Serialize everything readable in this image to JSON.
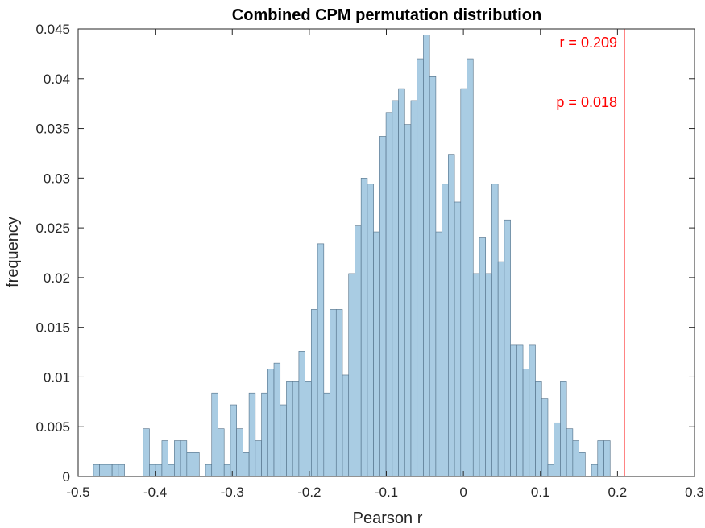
{
  "chart_data": {
    "type": "bar",
    "title": "Combined CPM permutation distribution",
    "xlabel": "Pearson r",
    "ylabel": "frequency",
    "xlim": [
      -0.5,
      0.3
    ],
    "ylim": [
      0,
      0.045
    ],
    "xticks": [
      -0.5,
      -0.4,
      -0.3,
      -0.2,
      -0.1,
      0,
      0.1,
      0.2,
      0.3
    ],
    "xtick_labels": [
      "-0.5",
      "-0.4",
      "-0.3",
      "-0.2",
      "-0.1",
      "0",
      "0.1",
      "0.2",
      "0.3"
    ],
    "yticks": [
      0,
      0.005,
      0.01,
      0.015,
      0.02,
      0.025,
      0.03,
      0.035,
      0.04,
      0.045
    ],
    "ytick_labels": [
      "0",
      "0.005",
      "0.01",
      "0.015",
      "0.02",
      "0.025",
      "0.03",
      "0.035",
      "0.04",
      "0.045"
    ],
    "bin_start": -0.4802,
    "bin_width": 0.00808,
    "values": [
      0.0012,
      0.0012,
      0.0012,
      0.0012,
      0.0012,
      0,
      0,
      0,
      0.0048,
      0.0012,
      0.0012,
      0.0036,
      0.0012,
      0.0036,
      0.0036,
      0.0024,
      0.0024,
      0,
      0.0012,
      0.0084,
      0.0048,
      0.0012,
      0.0072,
      0.0048,
      0.0024,
      0.0084,
      0.0036,
      0.0084,
      0.0108,
      0.0114,
      0.0072,
      0.0096,
      0.0096,
      0.0126,
      0.0096,
      0.0168,
      0.0234,
      0.0084,
      0.0168,
      0.0168,
      0.0102,
      0.0204,
      0.0252,
      0.03,
      0.0294,
      0.0246,
      0.0342,
      0.0366,
      0.0378,
      0.039,
      0.0354,
      0.0378,
      0.042,
      0.0444,
      0.0402,
      0.0246,
      0.0294,
      0.0324,
      0.0276,
      0.039,
      0.042,
      0.0204,
      0.024,
      0.0204,
      0.0294,
      0.0216,
      0.0258,
      0.0132,
      0.0132,
      0.0108,
      0.0132,
      0.0096,
      0.0078,
      0.0012,
      0.0054,
      0.0096,
      0.0048,
      0.0036,
      0.0024,
      0,
      0.0012,
      0.0036,
      0.0036
    ],
    "bar_color": "#a9cce3",
    "bar_edge_color": "#4f6d85",
    "vline": {
      "x": 0.209,
      "color": "#ff0000"
    },
    "annotations": [
      {
        "text": "r = 0.209",
        "color": "#ff0000"
      },
      {
        "text": "p = 0.018",
        "color": "#ff0000"
      }
    ],
    "grid": false
  }
}
